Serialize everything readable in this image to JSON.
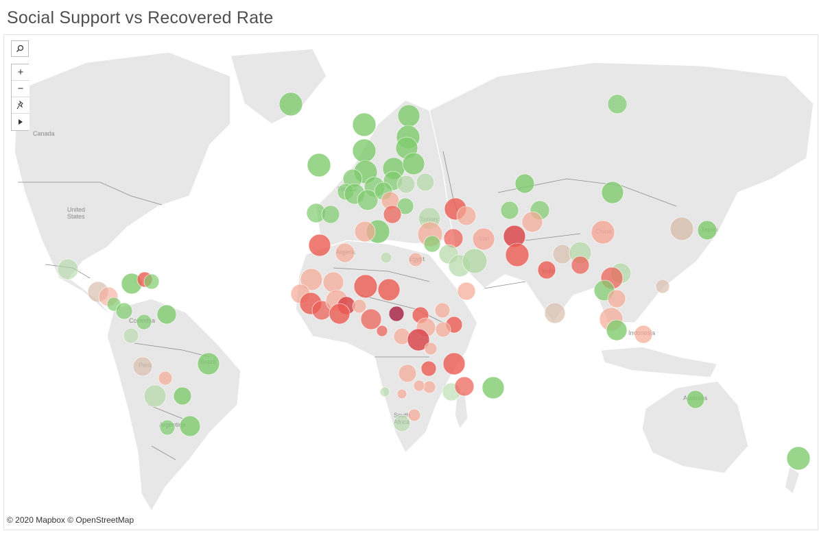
{
  "title": "Social Support vs Recovered Rate",
  "attribution": "© 2020 Mapbox © OpenStreetMap",
  "toolbar": {
    "search_icon": "search-icon",
    "zoom_in_icon": "plus-icon",
    "zoom_out_icon": "minus-icon",
    "pin_icon": "pin-icon",
    "play_icon": "play-icon"
  },
  "map_labels": {
    "canada": "Canada",
    "united_states": "United\nStates",
    "colombia": "Colombia",
    "peru": "Peru",
    "brazil": "Brazil",
    "argentina": "Argentina",
    "france": "France",
    "algeria": "Algeria",
    "egypt": "Egypt",
    "turkey": "Turkey",
    "iran": "Iran",
    "china": "China",
    "japan": "Japan",
    "india": "India",
    "indonesia": "Indonesia",
    "australia": "Australia",
    "south_africa": "South\nAfrica"
  },
  "colors": {
    "green": "#7fcc6e",
    "light_green": "#b4d9a6",
    "tan": "#d8bfae",
    "salmon": "#f5a896",
    "red": "#ec5c53",
    "dark_red": "#d94045",
    "maroon": "#a8284a"
  }
}
